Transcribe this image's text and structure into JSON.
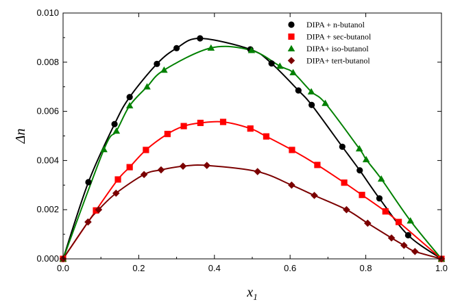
{
  "chart_data": {
    "type": "scatter",
    "xlabel": {
      "main": "x",
      "sub": "1"
    },
    "ylabel": "Δn",
    "xlim": [
      0.0,
      1.0
    ],
    "ylim": [
      0.0,
      0.01
    ],
    "xticks": [
      "0.0",
      "0.2",
      "0.4",
      "0.6",
      "0.8",
      "1.0"
    ],
    "yticks": [
      "0.000",
      "0.002",
      "0.004",
      "0.006",
      "0.008",
      "0.010"
    ],
    "xtick_values": [
      0.0,
      0.2,
      0.4,
      0.6,
      0.8,
      1.0
    ],
    "ytick_values": [
      0.0,
      0.002,
      0.004,
      0.006,
      0.008,
      0.01
    ],
    "legend_position": "top-right",
    "series": [
      {
        "name": "DIPA + n-butanol",
        "marker": "circle",
        "color": "#000000",
        "x": [
          0.0,
          0.067,
          0.136,
          0.176,
          0.248,
          0.3,
          0.362,
          0.495,
          0.551,
          0.622,
          0.657,
          0.738,
          0.784,
          0.836,
          0.912,
          1.0
        ],
        "y": [
          0.0,
          0.00312,
          0.00548,
          0.00658,
          0.00793,
          0.00857,
          0.00897,
          0.00852,
          0.00795,
          0.00685,
          0.00626,
          0.00456,
          0.0036,
          0.00246,
          0.00096,
          0.0
        ]
      },
      {
        "name": "DIPA + sec-butanol",
        "marker": "square",
        "color": "#ff0000",
        "x": [
          0.0,
          0.087,
          0.145,
          0.176,
          0.219,
          0.276,
          0.319,
          0.363,
          0.423,
          0.495,
          0.537,
          0.605,
          0.672,
          0.743,
          0.79,
          0.852,
          0.887,
          1.0
        ],
        "y": [
          0.0,
          0.00197,
          0.00323,
          0.00373,
          0.00443,
          0.00508,
          0.0054,
          0.00553,
          0.00557,
          0.0053,
          0.00498,
          0.00443,
          0.00382,
          0.0031,
          0.0026,
          0.00193,
          0.0015,
          0.0
        ]
      },
      {
        "name": "DIPA+ iso-butanol",
        "marker": "triangle",
        "color": "#008000",
        "x": [
          0.0,
          0.108,
          0.141,
          0.176,
          0.222,
          0.267,
          0.391,
          0.498,
          0.573,
          0.608,
          0.656,
          0.693,
          0.783,
          0.801,
          0.841,
          0.918,
          1.0
        ],
        "y": [
          0.0,
          0.00445,
          0.0052,
          0.00623,
          0.007,
          0.00768,
          0.00858,
          0.00848,
          0.00784,
          0.00758,
          0.0068,
          0.00633,
          0.00448,
          0.00404,
          0.00325,
          0.00155,
          0.0
        ]
      },
      {
        "name": "DIPA+  tert-butanol",
        "marker": "diamond",
        "color": "#7b0000",
        "x": [
          0.0,
          0.066,
          0.094,
          0.14,
          0.214,
          0.259,
          0.317,
          0.38,
          0.514,
          0.604,
          0.664,
          0.749,
          0.805,
          0.868,
          0.901,
          0.93,
          1.0
        ],
        "y": [
          0.0,
          0.0015,
          0.002,
          0.00267,
          0.00343,
          0.00362,
          0.00377,
          0.0038,
          0.00355,
          0.003,
          0.00258,
          0.002,
          0.00145,
          0.00085,
          0.00055,
          0.0003,
          0.0
        ]
      }
    ]
  }
}
